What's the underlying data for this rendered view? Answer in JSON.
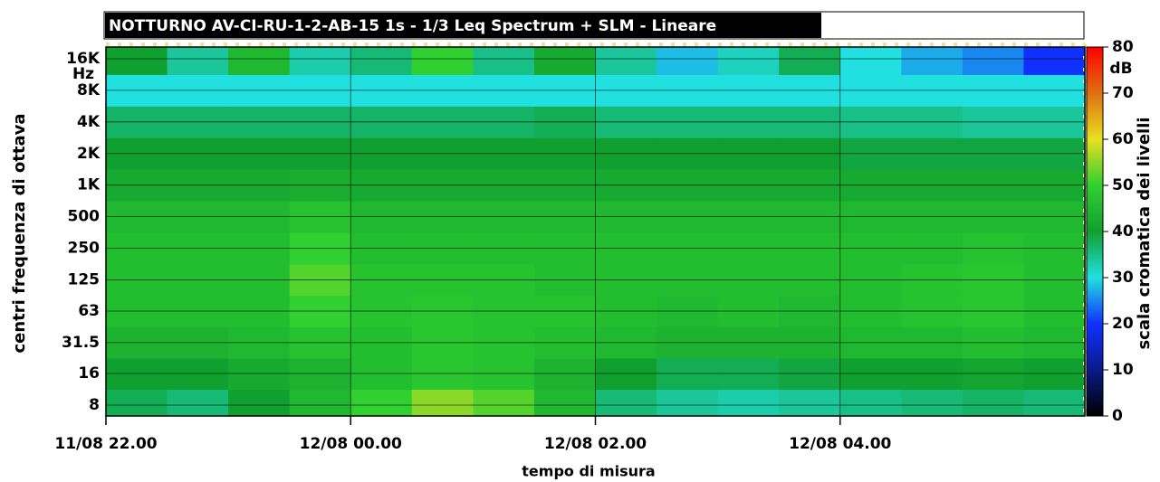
{
  "chart_data": {
    "type": "heatmap",
    "title": "NOTTURNO AV-CI-RU-1-2-AB-15 1s - 1/3 Leq Spectrum + SLM - Lineare",
    "x_label": "tempo di misura",
    "y_label": "centri frequenza di ottava",
    "y_unit": "Hz",
    "z_label": "scala cromatica dei livelli",
    "z_unit": "dB",
    "y_scale": "log",
    "grid": true,
    "xlim": [
      0,
      8
    ],
    "xticks": [
      {
        "value": 0,
        "label": "11/08 22.00"
      },
      {
        "value": 2,
        "label": "12/08 00.00"
      },
      {
        "value": 4,
        "label": "12/08 02.00"
      },
      {
        "value": 6,
        "label": "12/08 04.00"
      }
    ],
    "ylim": [
      6.3,
      20700
    ],
    "yticks": [
      8,
      16,
      31.5,
      63,
      125,
      250,
      500,
      {
        "value": 1000,
        "label": "1K"
      },
      {
        "value": 2000,
        "label": "2K"
      },
      {
        "value": 4000,
        "label": "4K"
      },
      {
        "value": 8000,
        "label": "8K"
      },
      {
        "value": 16000,
        "label": "16K"
      }
    ],
    "zlim": [
      0,
      80
    ],
    "zticks": [
      0,
      10,
      20,
      30,
      40,
      50,
      60,
      70,
      80
    ],
    "colors": [
      "#000000",
      "#0a1a8a",
      "#1030ff",
      "#20e0e0",
      "#10a030",
      "#30d030",
      "#e8e020",
      "#e07010",
      "#ff0000"
    ],
    "x": [
      0.25,
      0.75,
      1.25,
      1.75,
      2.25,
      2.75,
      3.25,
      3.75,
      4.25,
      4.75,
      5.25,
      5.75,
      6.25,
      6.75,
      7.25,
      7.75
    ],
    "y": [
      8,
      16,
      31.5,
      63,
      125,
      250,
      500,
      1000,
      2000,
      4000,
      8000,
      16000
    ],
    "z": [
      [
        38,
        36,
        40,
        45,
        50,
        55,
        52,
        45,
        36,
        34,
        33,
        34,
        35,
        36,
        37,
        36
      ],
      [
        40,
        40,
        42,
        44,
        46,
        48,
        47,
        44,
        40,
        38,
        38,
        39,
        40,
        40,
        41,
        40
      ],
      [
        44,
        44,
        45,
        47,
        46,
        48,
        47,
        46,
        45,
        44,
        44,
        44,
        45,
        45,
        46,
        45
      ],
      [
        46,
        46,
        46,
        50,
        47,
        48,
        47,
        47,
        46,
        45,
        46,
        45,
        46,
        47,
        48,
        46
      ],
      [
        46,
        46,
        46,
        52,
        47,
        47,
        47,
        46,
        46,
        46,
        46,
        46,
        46,
        47,
        48,
        46
      ],
      [
        46,
        46,
        46,
        50,
        46,
        46,
        46,
        46,
        46,
        46,
        46,
        46,
        46,
        46,
        47,
        46
      ],
      [
        45,
        45,
        45,
        47,
        45,
        45,
        45,
        45,
        45,
        45,
        45,
        45,
        45,
        45,
        45,
        45
      ],
      [
        42,
        42,
        42,
        43,
        42,
        42,
        42,
        42,
        42,
        42,
        42,
        42,
        42,
        42,
        42,
        42
      ],
      [
        40,
        40,
        40,
        40,
        40,
        40,
        40,
        40,
        40,
        40,
        40,
        40,
        39,
        39,
        39,
        39
      ],
      [
        37,
        37,
        37,
        37,
        37,
        37,
        37,
        38,
        36,
        36,
        36,
        36,
        35,
        35,
        34,
        34
      ],
      [
        30,
        30,
        30,
        30,
        30,
        30,
        30,
        30,
        30,
        30,
        30,
        30,
        30,
        30,
        30,
        30
      ],
      [
        40,
        34,
        45,
        33,
        36,
        50,
        35,
        42,
        34,
        28,
        32,
        38,
        30,
        27,
        25,
        20
      ]
    ]
  }
}
